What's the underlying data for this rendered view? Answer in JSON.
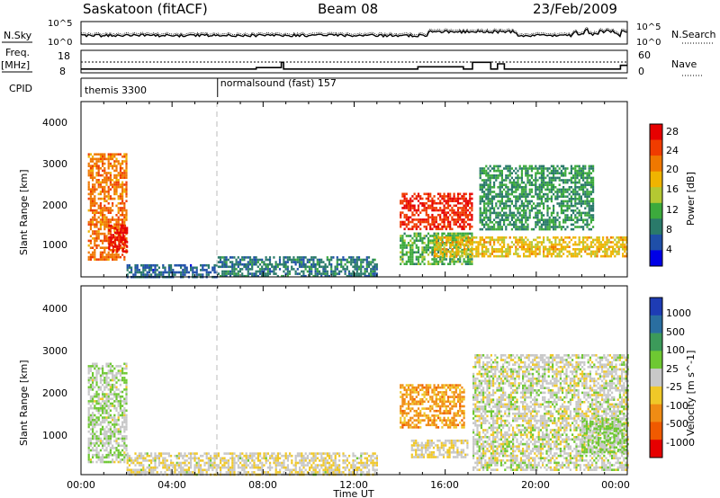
{
  "header": {
    "station": "Saskatoon (fitACF)",
    "beam": "Beam 08",
    "date": "23/Feb/2009"
  },
  "noise_panel": {
    "left_label": "N.Sky",
    "left_ticks": [
      "10^5",
      "10^0"
    ],
    "right_label": "N.Search",
    "right_ticks": [
      "10^5",
      "10^0"
    ]
  },
  "freq_panel": {
    "left_label_1": "Freq.",
    "left_label_2": "[MHz]",
    "left_ticks": [
      "18",
      "8"
    ],
    "right_label": "Nave",
    "right_ticks": [
      "60",
      "0"
    ]
  },
  "cpid_panel": {
    "label": "CPID",
    "modes": [
      {
        "name": "themis 3300",
        "start_hour": 0
      },
      {
        "name": "normalsound (fast) 157",
        "start_hour": 6
      }
    ]
  },
  "power_panel": {
    "ylabel": "Slant Range [km]",
    "yticks": [
      "4000",
      "3000",
      "2000",
      "1000"
    ],
    "colorbar_label": "Power [dB]",
    "colorbar_ticks": [
      "28",
      "24",
      "20",
      "16",
      "12",
      "8",
      "4"
    ],
    "colors": [
      "#0000e6",
      "#1f4fa8",
      "#2a7a6a",
      "#3caa3c",
      "#b4c832",
      "#f0b400",
      "#f07800",
      "#f03c00",
      "#e60000"
    ]
  },
  "velocity_panel": {
    "ylabel": "Slant Range [km]",
    "yticks": [
      "4000",
      "3000",
      "2000",
      "1000"
    ],
    "colorbar_label": "Velocity [m s^-1]",
    "colorbar_ticks": [
      "1000",
      "500",
      "100",
      "25",
      "-25",
      "-100",
      "-500",
      "-1000"
    ],
    "colors": [
      "#1e3cb4",
      "#2a6ea0",
      "#3c9a5a",
      "#6ec832",
      "#c8c8c8",
      "#f0c828",
      "#f08c14",
      "#f05a00",
      "#e60000"
    ]
  },
  "xaxis": {
    "ticks": [
      "00:00",
      "04:00",
      "08:00",
      "12:00",
      "16:00",
      "20:00",
      "00:00"
    ],
    "label": "Time UT"
  },
  "chart_data": {
    "type": "heatmap",
    "title": "Saskatoon (fitACF) Beam 08 23/Feb/2009",
    "xlabel": "Time UT",
    "xlim": [
      0,
      24
    ],
    "ylabel": "Slant Range [km]",
    "ylim": [
      180,
      4600
    ],
    "panels": [
      {
        "name": "Power [dB]",
        "zlim": [
          0,
          30
        ],
        "regions": [
          {
            "t0": 0.3,
            "t1": 2.0,
            "r0": 600,
            "r1": 3300,
            "value": 22
          },
          {
            "t0": 1.2,
            "t1": 2.0,
            "r0": 800,
            "r1": 1500,
            "value": 28
          },
          {
            "t0": 2.0,
            "t1": 6.0,
            "r0": 200,
            "r1": 500,
            "value": 6
          },
          {
            "t0": 6.0,
            "t1": 13.0,
            "r0": 200,
            "r1": 700,
            "value": 8
          },
          {
            "t0": 14.0,
            "t1": 17.2,
            "r0": 1400,
            "r1": 2300,
            "value": 26
          },
          {
            "t0": 14.0,
            "t1": 17.2,
            "r0": 500,
            "r1": 1300,
            "value": 12
          },
          {
            "t0": 15.5,
            "t1": 24.0,
            "r0": 700,
            "r1": 1200,
            "value": 18
          },
          {
            "t0": 17.5,
            "t1": 22.5,
            "r0": 1400,
            "r1": 3000,
            "value": 10
          }
        ]
      },
      {
        "name": "Velocity [m s^-1]",
        "zlim": [
          -1000,
          1000
        ],
        "regions": [
          {
            "t0": 0.3,
            "t1": 2.0,
            "r0": 500,
            "r1": 2800,
            "value": 60
          },
          {
            "t0": 2.0,
            "t1": 13.0,
            "r0": 200,
            "r1": 700,
            "value": -60
          },
          {
            "t0": 14.0,
            "t1": 16.8,
            "r0": 1300,
            "r1": 2300,
            "value": -400
          },
          {
            "t0": 14.5,
            "t1": 17.0,
            "r0": 600,
            "r1": 1000,
            "value": -80
          },
          {
            "t0": 17.2,
            "t1": 24.0,
            "r0": 300,
            "r1": 3000,
            "value": 0
          },
          {
            "t0": 22.0,
            "t1": 24.0,
            "r0": 700,
            "r1": 1500,
            "value": 150
          }
        ]
      }
    ],
    "nave": {
      "x": [
        0,
        7,
        7.7,
        8.8,
        8.9,
        12.3,
        14.6,
        14.8,
        16.8,
        17.2,
        18,
        18.3,
        18.6,
        21.6,
        23.7,
        24
      ],
      "y": [
        10,
        10,
        14,
        28,
        10,
        10,
        10,
        16,
        10,
        28,
        10,
        24,
        10,
        10,
        20,
        20
      ]
    }
  }
}
